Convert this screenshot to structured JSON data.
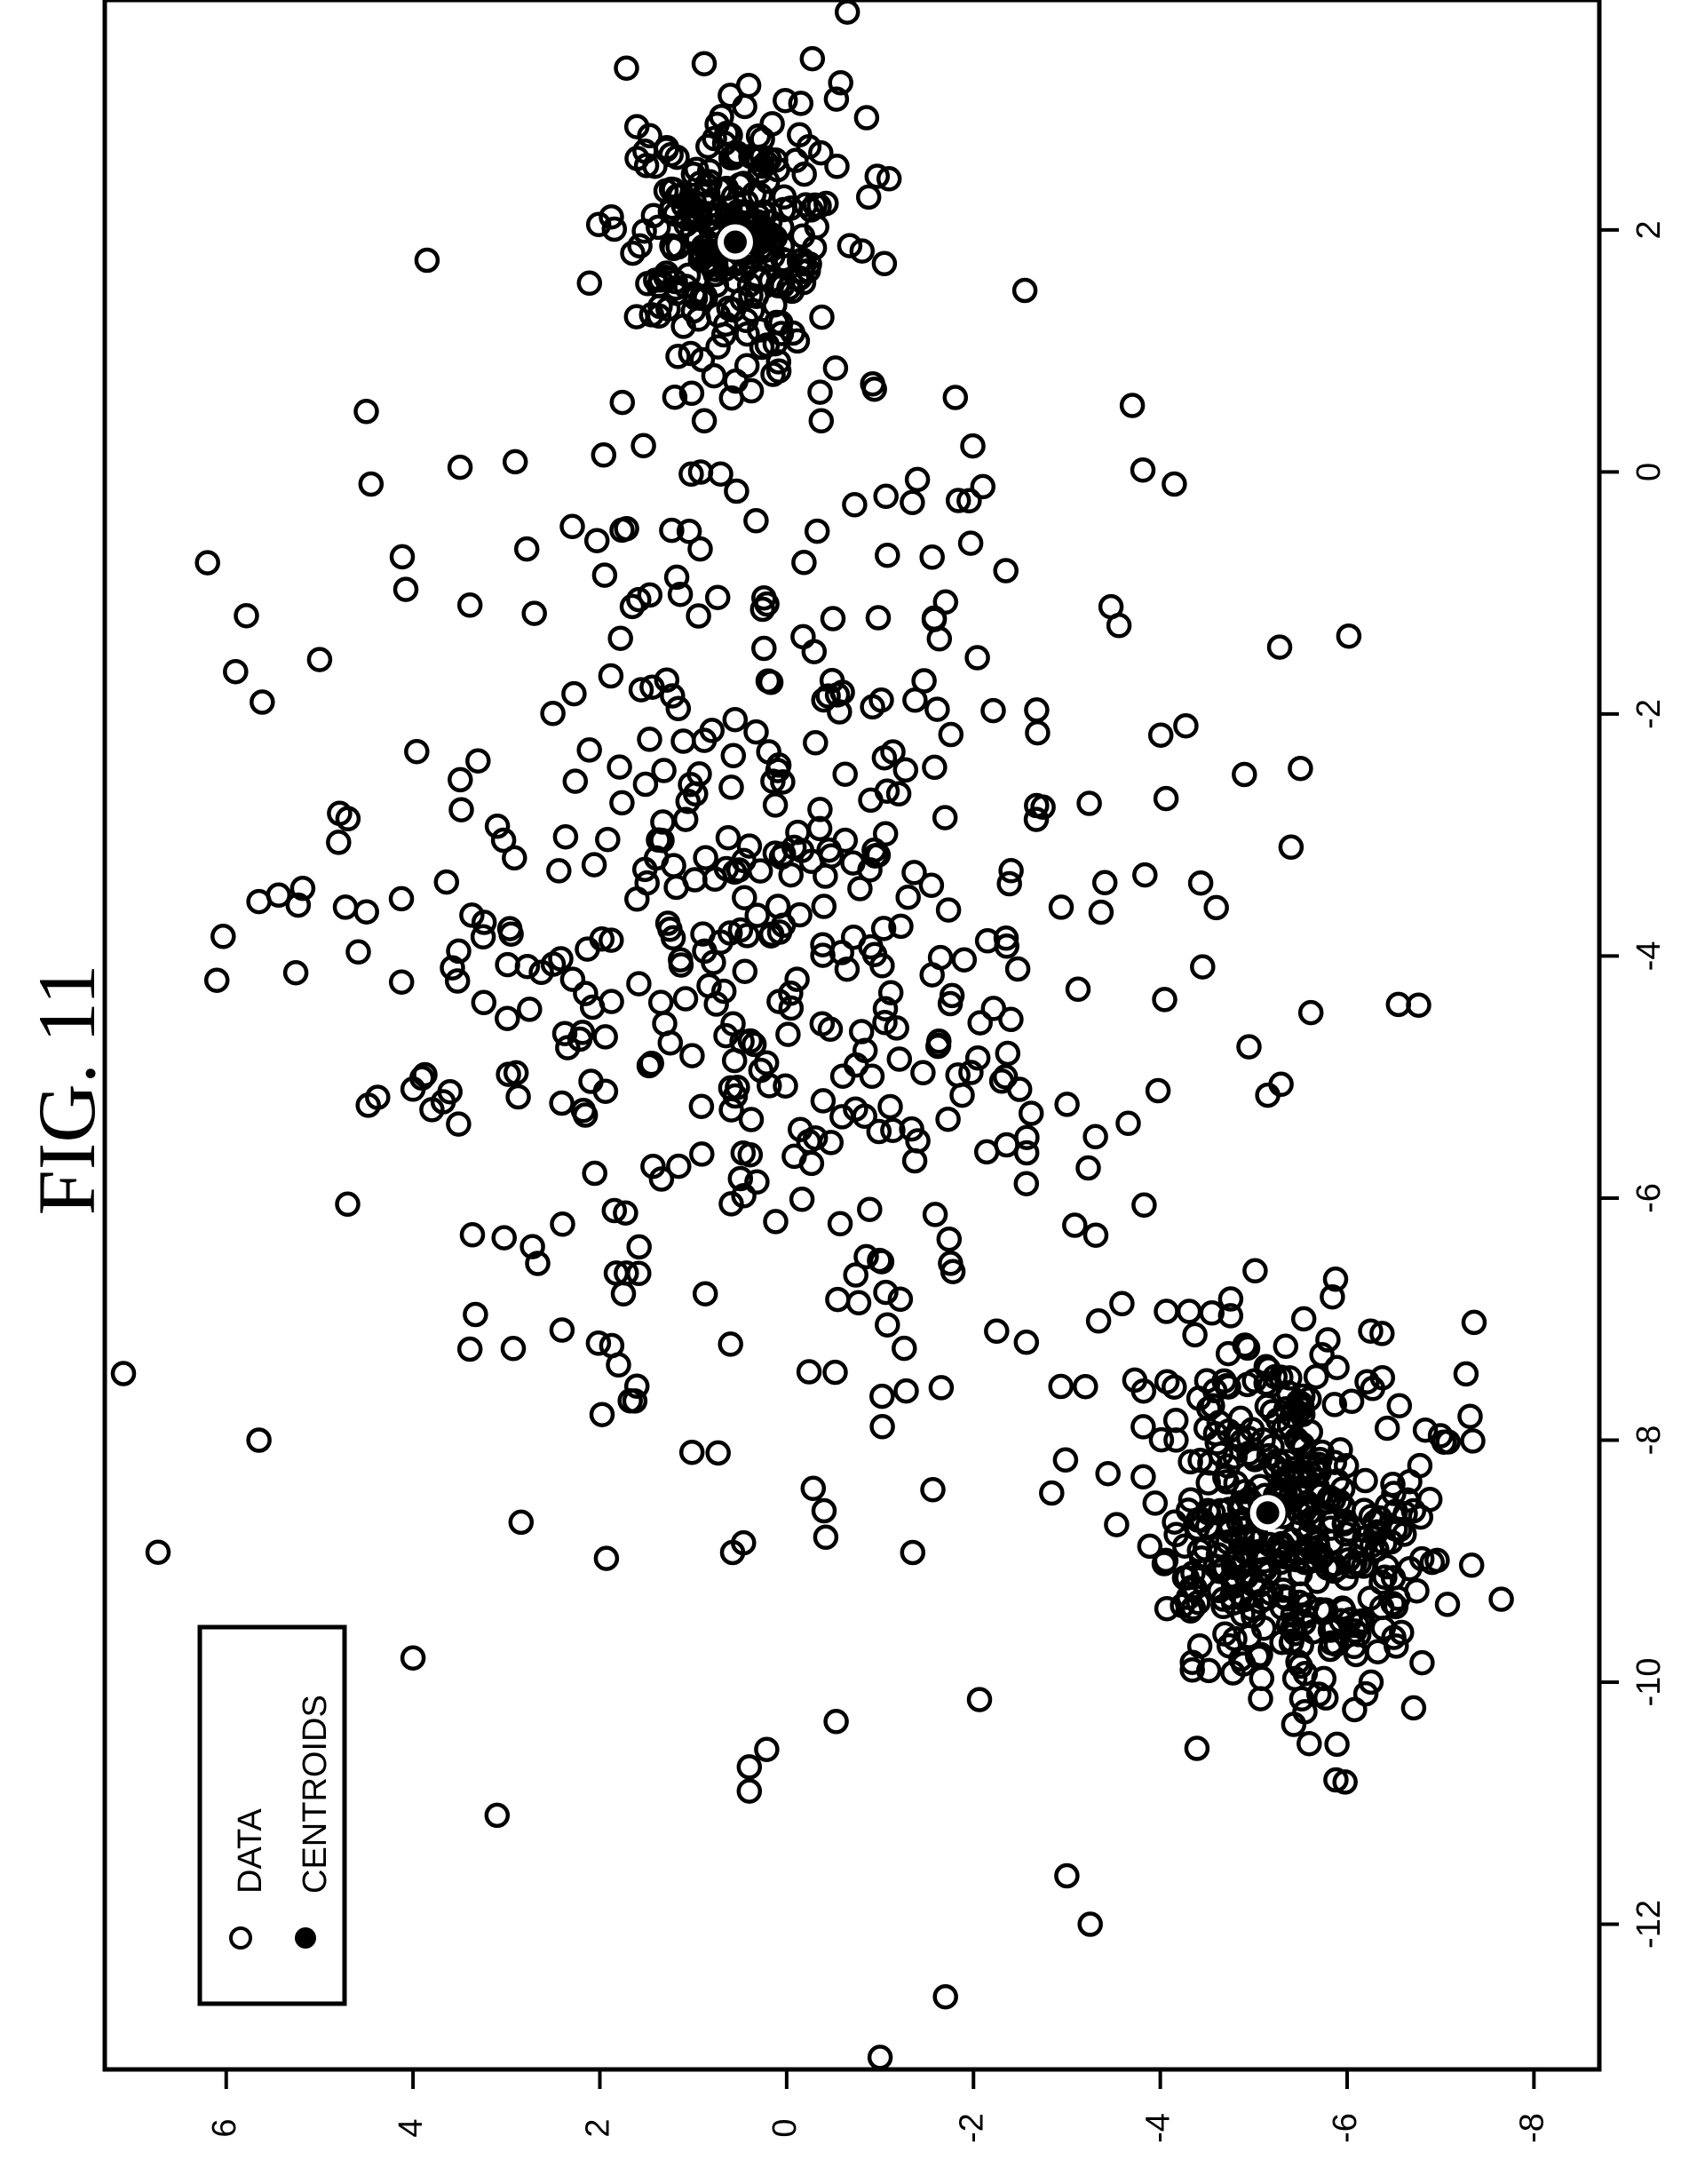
{
  "figure_title": "FIG. 11",
  "legend": {
    "items": [
      {
        "label": "DATA",
        "marker": "open-circle"
      },
      {
        "label": "CENTROIDS",
        "marker": "filled-circle"
      }
    ]
  },
  "colors": {
    "ink": "#000000",
    "background": "#ffffff"
  },
  "chart_data": {
    "type": "scatter",
    "title": "",
    "xlabel": "",
    "ylabel": "",
    "orientation": "rotated 90 degrees (x-axis drawn vertically on right side, y-axis along bottom)",
    "xlim": [
      -13.2,
      3.9
    ],
    "ylim": [
      -8.7,
      7.3
    ],
    "xticks": [
      "-12",
      "-10",
      "-8",
      "-6",
      "-4",
      "-2",
      "0",
      "2"
    ],
    "yticks": [
      "6",
      "4",
      "2",
      "0",
      "-2",
      "-4",
      "-6",
      "-8"
    ],
    "legend_position": "bottom-left",
    "centroids": [
      {
        "x": 1.9,
        "y": 0.55
      },
      {
        "x": -8.6,
        "y": -5.15
      }
    ],
    "clusters": [
      {
        "center_x": 1.9,
        "center_y": 0.55,
        "spread": 0.55,
        "count": 290,
        "seed": 17
      },
      {
        "center_x": -8.8,
        "center_y": -5.4,
        "spread": 0.75,
        "count": 420,
        "seed": 29
      },
      {
        "center_x": -4.0,
        "center_y": 0.3,
        "spread": 2.2,
        "count": 480,
        "seed": 43
      }
    ],
    "outliers": [
      {
        "x": -0.75,
        "y": 6.2
      },
      {
        "x": -1.65,
        "y": 5.9
      },
      {
        "x": -7.1,
        "y": 7.25
      },
      {
        "x": -7.45,
        "y": 7.1
      },
      {
        "x": 0.5,
        "y": 4.5
      },
      {
        "x": -0.1,
        "y": 4.45
      },
      {
        "x": 1.75,
        "y": 3.85
      },
      {
        "x": -9.8,
        "y": 4.0
      },
      {
        "x": -11.1,
        "y": 3.1
      },
      {
        "x": -12.6,
        "y": -1.7
      },
      {
        "x": -11.6,
        "y": -3.0
      },
      {
        "x": -12.0,
        "y": -3.25
      },
      {
        "x": -13.1,
        "y": -1.0
      },
      {
        "x": -10.7,
        "y": 0.4
      },
      {
        "x": -10.9,
        "y": 0.4
      },
      {
        "x": 0.55,
        "y": -3.7
      },
      {
        "x": 1.5,
        "y": -2.55
      },
      {
        "x": -0.1,
        "y": -4.15
      },
      {
        "x": -2.5,
        "y": -4.9
      },
      {
        "x": -2.45,
        "y": -5.5
      },
      {
        "x": -3.1,
        "y": -5.4
      },
      {
        "x": -4.4,
        "y": -6.55
      },
      {
        "x": -10.0,
        "y": -8.75
      },
      {
        "x": 3.8,
        "y": -0.65
      },
      {
        "x": -8.0,
        "y": 5.65
      },
      {
        "x": -4.2,
        "y": 6.1
      },
      {
        "x": -3.55,
        "y": 5.65
      },
      {
        "x": -1.55,
        "y": 5.0
      },
      {
        "x": -5.1,
        "y": 4.0
      },
      {
        "x": -6.05,
        "y": 4.7
      },
      {
        "x": -4.75,
        "y": -4.95
      },
      {
        "x": -5.15,
        "y": -5.15
      },
      {
        "x": -3.6,
        "y": -4.6
      }
    ]
  }
}
